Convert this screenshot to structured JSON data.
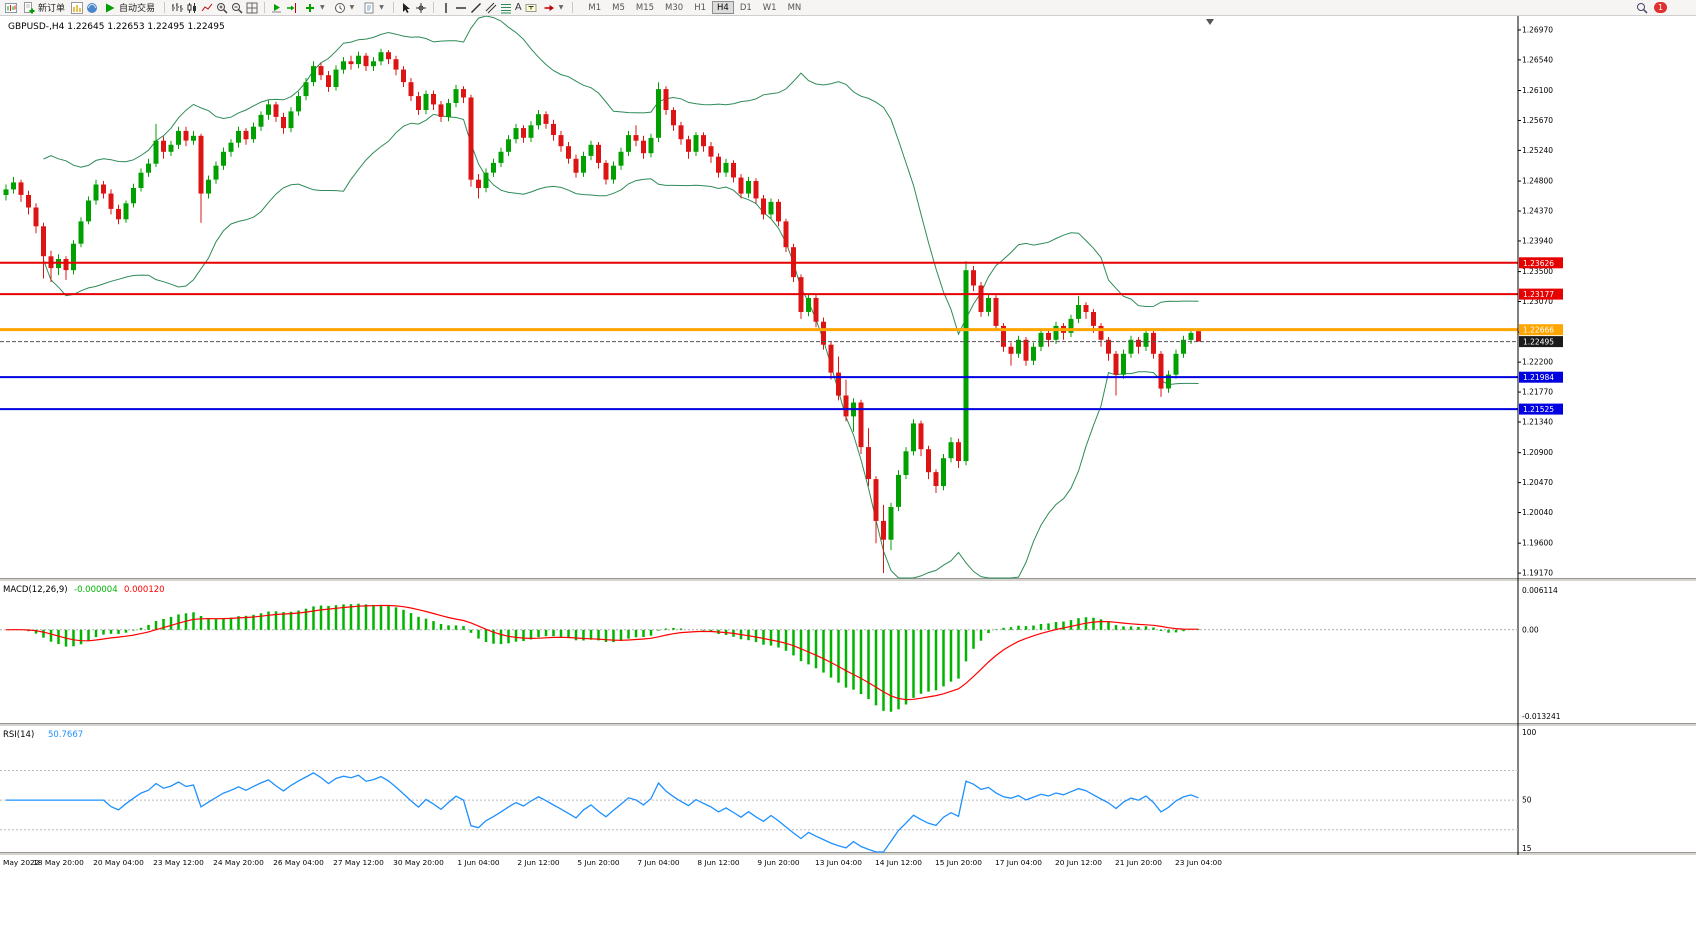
{
  "toolbar": {
    "new_order": "新订单",
    "autotrading": "自动交易",
    "timeframes": [
      "M1",
      "M5",
      "M15",
      "M30",
      "H1",
      "H4",
      "D1",
      "W1",
      "MN"
    ],
    "active_timeframe": "H4",
    "notification_count": "1"
  },
  "header": {
    "symbol_period": "GBPUSD-,H4",
    "open": "1.22645",
    "high": "1.22653",
    "low": "1.22495",
    "close": "1.22495"
  },
  "price_axis": {
    "top": 1.2717,
    "bottom": 1.191,
    "labels": [
      "1.26970",
      "1.26540",
      "1.26100",
      "1.25670",
      "1.25240",
      "1.24800",
      "1.24370",
      "1.23940",
      "1.23500",
      "1.23070",
      "1.22630",
      "1.22200",
      "1.21770",
      "1.21340",
      "1.20900",
      "1.20470",
      "1.20040",
      "1.19600",
      "1.19170"
    ]
  },
  "objects": {
    "hlines": [
      {
        "price": 1.23626,
        "label": "1.23626",
        "color": "#e60000",
        "width": 2
      },
      {
        "price": 1.23177,
        "label": "1.23177",
        "color": "#e60000",
        "width": 2
      },
      {
        "price": 1.22666,
        "label": "1.22666",
        "color": "#ffa500",
        "width": 3
      },
      {
        "price": 1.21984,
        "label": "1.21984",
        "color": "#0000e0",
        "width": 2
      },
      {
        "price": 1.21525,
        "label": "1.21525",
        "color": "#0000e0",
        "width": 2
      }
    ],
    "current_price": {
      "price": 1.22495,
      "label": "1.22495",
      "badge_color": "#1a1a1a"
    }
  },
  "time_axis": {
    "month": "May 2022",
    "labels": [
      "18 May 20:00",
      "20 May 04:00",
      "23 May 12:00",
      "24 May 20:00",
      "26 May 04:00",
      "27 May 12:00",
      "30 May 20:00",
      "1 Jun 04:00",
      "2 Jun 12:00",
      "5 Jun 20:00",
      "7 Jun 04:00",
      "8 Jun 12:00",
      "9 Jun 20:00",
      "13 Jun 04:00",
      "14 Jun 12:00",
      "15 Jun 20:00",
      "17 Jun 04:00",
      "20 Jun 12:00",
      "21 Jun 20:00",
      "23 Jun 04:00"
    ]
  },
  "chart_data": {
    "type": "candlestick",
    "symbol": "GBPUSD-",
    "period": "H4",
    "colors": {
      "bull": "#00a000",
      "bear": "#dc1414",
      "bands": "#2e8b57",
      "macd_hist": "#00b400",
      "macd_signal": "#ff0000",
      "rsi": "#1e90ff"
    },
    "candles": [
      [
        1.246,
        1.2475,
        1.2452,
        1.2468
      ],
      [
        1.2468,
        1.2486,
        1.2462,
        1.2478
      ],
      [
        1.2478,
        1.2482,
        1.245,
        1.246
      ],
      [
        1.246,
        1.2466,
        1.2432,
        1.2442
      ],
      [
        1.2442,
        1.2448,
        1.2405,
        1.2415
      ],
      [
        1.2415,
        1.242,
        1.234,
        1.2372
      ],
      [
        1.2372,
        1.238,
        1.2335,
        1.2355
      ],
      [
        1.2355,
        1.2375,
        1.2345,
        1.2368
      ],
      [
        1.2368,
        1.2372,
        1.2338,
        1.2352
      ],
      [
        1.2352,
        1.2395,
        1.2346,
        1.239
      ],
      [
        1.239,
        1.2428,
        1.2385,
        1.2422
      ],
      [
        1.2422,
        1.2458,
        1.2418,
        1.2452
      ],
      [
        1.2452,
        1.2482,
        1.2446,
        1.2475
      ],
      [
        1.2475,
        1.248,
        1.2455,
        1.2462
      ],
      [
        1.2462,
        1.2468,
        1.2432,
        1.244
      ],
      [
        1.244,
        1.2446,
        1.2418,
        1.2425
      ],
      [
        1.2425,
        1.2452,
        1.242,
        1.2448
      ],
      [
        1.2448,
        1.2476,
        1.2442,
        1.247
      ],
      [
        1.247,
        1.2498,
        1.2465,
        1.2492
      ],
      [
        1.2492,
        1.2512,
        1.2486,
        1.2505
      ],
      [
        1.2505,
        1.2562,
        1.25,
        1.2538
      ],
      [
        1.2538,
        1.2544,
        1.2512,
        1.2522
      ],
      [
        1.2522,
        1.2538,
        1.2516,
        1.2532
      ],
      [
        1.2532,
        1.2558,
        1.2526,
        1.2552
      ],
      [
        1.2552,
        1.2558,
        1.253,
        1.2538
      ],
      [
        1.2538,
        1.2552,
        1.2532,
        1.2545
      ],
      [
        1.2545,
        1.2548,
        1.242,
        1.2462
      ],
      [
        1.2462,
        1.2488,
        1.2455,
        1.2482
      ],
      [
        1.2482,
        1.2508,
        1.2476,
        1.2502
      ],
      [
        1.2502,
        1.2528,
        1.2496,
        1.2522
      ],
      [
        1.2522,
        1.254,
        1.2515,
        1.2535
      ],
      [
        1.2535,
        1.2558,
        1.2528,
        1.2552
      ],
      [
        1.2552,
        1.2556,
        1.2532,
        1.254
      ],
      [
        1.254,
        1.2564,
        1.2535,
        1.2558
      ],
      [
        1.2558,
        1.258,
        1.2552,
        1.2575
      ],
      [
        1.2575,
        1.2596,
        1.2568,
        1.259
      ],
      [
        1.259,
        1.2594,
        1.2565,
        1.2572
      ],
      [
        1.2572,
        1.2578,
        1.2548,
        1.2556
      ],
      [
        1.2556,
        1.2586,
        1.255,
        1.258
      ],
      [
        1.258,
        1.2608,
        1.2574,
        1.2602
      ],
      [
        1.2602,
        1.2628,
        1.2596,
        1.2622
      ],
      [
        1.2622,
        1.2652,
        1.2616,
        1.2645
      ],
      [
        1.2645,
        1.265,
        1.2625,
        1.2632
      ],
      [
        1.2632,
        1.2638,
        1.2608,
        1.2615
      ],
      [
        1.2615,
        1.2646,
        1.261,
        1.264
      ],
      [
        1.264,
        1.2658,
        1.2634,
        1.2652
      ],
      [
        1.2652,
        1.266,
        1.264,
        1.2648
      ],
      [
        1.2648,
        1.2666,
        1.2642,
        1.266
      ],
      [
        1.266,
        1.2664,
        1.2638,
        1.2645
      ],
      [
        1.2645,
        1.2658,
        1.2638,
        1.2652
      ],
      [
        1.2652,
        1.267,
        1.2646,
        1.2665
      ],
      [
        1.2665,
        1.2668,
        1.2648,
        1.2655
      ],
      [
        1.2655,
        1.266,
        1.2632,
        1.264
      ],
      [
        1.264,
        1.2645,
        1.2615,
        1.2622
      ],
      [
        1.2622,
        1.2628,
        1.2595,
        1.2602
      ],
      [
        1.2602,
        1.2608,
        1.2575,
        1.2582
      ],
      [
        1.2582,
        1.261,
        1.2576,
        1.2605
      ],
      [
        1.2605,
        1.261,
        1.2582,
        1.259
      ],
      [
        1.259,
        1.2595,
        1.2565,
        1.2572
      ],
      [
        1.2572,
        1.2598,
        1.2566,
        1.2592
      ],
      [
        1.2592,
        1.2618,
        1.2586,
        1.2612
      ],
      [
        1.2612,
        1.2616,
        1.2592,
        1.26
      ],
      [
        1.26,
        1.2604,
        1.2472,
        1.2482
      ],
      [
        1.2482,
        1.249,
        1.2455,
        1.247
      ],
      [
        1.247,
        1.2498,
        1.2464,
        1.2492
      ],
      [
        1.2492,
        1.2512,
        1.2486,
        1.2506
      ],
      [
        1.2506,
        1.2528,
        1.25,
        1.2522
      ],
      [
        1.2522,
        1.2546,
        1.2516,
        1.254
      ],
      [
        1.254,
        1.2562,
        1.2534,
        1.2556
      ],
      [
        1.2556,
        1.256,
        1.2535,
        1.2542
      ],
      [
        1.2542,
        1.2566,
        1.2536,
        1.256
      ],
      [
        1.256,
        1.2582,
        1.2554,
        1.2576
      ],
      [
        1.2576,
        1.258,
        1.2555,
        1.2562
      ],
      [
        1.2562,
        1.2568,
        1.2538,
        1.2546
      ],
      [
        1.2546,
        1.2552,
        1.2522,
        1.253
      ],
      [
        1.253,
        1.2536,
        1.2505,
        1.2512
      ],
      [
        1.2512,
        1.2518,
        1.2485,
        1.2492
      ],
      [
        1.2492,
        1.2522,
        1.2486,
        1.2516
      ],
      [
        1.2516,
        1.2538,
        1.251,
        1.2532
      ],
      [
        1.2532,
        1.2536,
        1.2498,
        1.2506
      ],
      [
        1.2506,
        1.251,
        1.2475,
        1.2482
      ],
      [
        1.2482,
        1.2508,
        1.2476,
        1.2502
      ],
      [
        1.2502,
        1.2528,
        1.2496,
        1.2522
      ],
      [
        1.2522,
        1.2552,
        1.2516,
        1.2546
      ],
      [
        1.2546,
        1.256,
        1.253,
        1.2538
      ],
      [
        1.2538,
        1.2545,
        1.2512,
        1.252
      ],
      [
        1.252,
        1.2548,
        1.2514,
        1.2542
      ],
      [
        1.2542,
        1.2622,
        1.2536,
        1.2612
      ],
      [
        1.2612,
        1.2616,
        1.2575,
        1.2582
      ],
      [
        1.2582,
        1.2586,
        1.2552,
        1.256
      ],
      [
        1.256,
        1.2565,
        1.2532,
        1.254
      ],
      [
        1.254,
        1.2545,
        1.2512,
        1.2522
      ],
      [
        1.2522,
        1.255,
        1.2516,
        1.2546
      ],
      [
        1.2546,
        1.255,
        1.2522,
        1.253
      ],
      [
        1.253,
        1.2536,
        1.2506,
        1.2515
      ],
      [
        1.2515,
        1.252,
        1.2485,
        1.2492
      ],
      [
        1.2492,
        1.2512,
        1.2486,
        1.2506
      ],
      [
        1.2506,
        1.251,
        1.2478,
        1.2485
      ],
      [
        1.2485,
        1.249,
        1.2455,
        1.2462
      ],
      [
        1.2462,
        1.2486,
        1.2456,
        1.248
      ],
      [
        1.248,
        1.2484,
        1.2448,
        1.2455
      ],
      [
        1.2455,
        1.246,
        1.2425,
        1.2432
      ],
      [
        1.2432,
        1.2455,
        1.2426,
        1.245
      ],
      [
        1.245,
        1.2454,
        1.2415,
        1.2422
      ],
      [
        1.2422,
        1.2426,
        1.2378,
        1.2385
      ],
      [
        1.2385,
        1.239,
        1.2335,
        1.2342
      ],
      [
        1.2342,
        1.2346,
        1.2282,
        1.2292
      ],
      [
        1.2292,
        1.2318,
        1.2286,
        1.2312
      ],
      [
        1.2312,
        1.2316,
        1.227,
        1.2278
      ],
      [
        1.2278,
        1.2284,
        1.2238,
        1.2245
      ],
      [
        1.2245,
        1.225,
        1.2195,
        1.2205
      ],
      [
        1.2205,
        1.2228,
        1.2165,
        1.2172
      ],
      [
        1.2172,
        1.2195,
        1.2135,
        1.2142
      ],
      [
        1.2142,
        1.2168,
        1.212,
        1.2162
      ],
      [
        1.2162,
        1.2166,
        1.2088,
        1.2098
      ],
      [
        1.2098,
        1.2125,
        1.2042,
        1.2052
      ],
      [
        1.2052,
        1.2056,
        1.196,
        1.1992
      ],
      [
        1.1992,
        1.2015,
        1.1917,
        1.1965
      ],
      [
        1.1965,
        1.2018,
        1.195,
        1.2012
      ],
      [
        1.2012,
        1.2065,
        1.2006,
        1.2058
      ],
      [
        1.2058,
        1.2098,
        1.2052,
        1.2092
      ],
      [
        1.2092,
        1.2138,
        1.2086,
        1.2132
      ],
      [
        1.2132,
        1.2136,
        1.2085,
        1.2095
      ],
      [
        1.2095,
        1.21,
        1.2052,
        1.2062
      ],
      [
        1.2062,
        1.2066,
        1.2032,
        1.2042
      ],
      [
        1.2042,
        1.2088,
        1.2036,
        1.2082
      ],
      [
        1.2082,
        1.2112,
        1.2076,
        1.2105
      ],
      [
        1.2105,
        1.211,
        1.2068,
        1.2078
      ],
      [
        1.2078,
        1.2365,
        1.2072,
        1.2352
      ],
      [
        1.2352,
        1.2358,
        1.2322,
        1.233
      ],
      [
        1.233,
        1.2335,
        1.2285,
        1.2292
      ],
      [
        1.2292,
        1.2318,
        1.2286,
        1.2312
      ],
      [
        1.2312,
        1.2316,
        1.2265,
        1.2272
      ],
      [
        1.2272,
        1.2276,
        1.2235,
        1.2242
      ],
      [
        1.2242,
        1.2248,
        1.2215,
        1.2232
      ],
      [
        1.2232,
        1.2258,
        1.2226,
        1.2252
      ],
      [
        1.2252,
        1.2256,
        1.2215,
        1.2222
      ],
      [
        1.2222,
        1.2248,
        1.2216,
        1.2242
      ],
      [
        1.2242,
        1.2268,
        1.2236,
        1.2262
      ],
      [
        1.2262,
        1.2266,
        1.2242,
        1.2252
      ],
      [
        1.2252,
        1.2278,
        1.2246,
        1.2272
      ],
      [
        1.2272,
        1.2276,
        1.2252,
        1.2262
      ],
      [
        1.2262,
        1.2288,
        1.2256,
        1.2282
      ],
      [
        1.2282,
        1.2315,
        1.2276,
        1.2302
      ],
      [
        1.2302,
        1.2306,
        1.2282,
        1.2292
      ],
      [
        1.2292,
        1.2296,
        1.2262,
        1.2272
      ],
      [
        1.2272,
        1.2276,
        1.2242,
        1.2252
      ],
      [
        1.2252,
        1.2256,
        1.2222,
        1.2232
      ],
      [
        1.2232,
        1.2236,
        1.2172,
        1.2202
      ],
      [
        1.2202,
        1.2238,
        1.2196,
        1.2232
      ],
      [
        1.2232,
        1.2258,
        1.2226,
        1.2252
      ],
      [
        1.2252,
        1.2256,
        1.2232,
        1.2242
      ],
      [
        1.2242,
        1.2268,
        1.2236,
        1.2262
      ],
      [
        1.2262,
        1.2266,
        1.2225,
        1.2232
      ],
      [
        1.2232,
        1.2236,
        1.217,
        1.2182
      ],
      [
        1.2182,
        1.2208,
        1.2176,
        1.2202
      ],
      [
        1.2202,
        1.2238,
        1.2196,
        1.2232
      ],
      [
        1.2232,
        1.2258,
        1.2226,
        1.2252
      ],
      [
        1.2252,
        1.2268,
        1.2246,
        1.2262
      ],
      [
        1.22645,
        1.22653,
        1.22495,
        1.22495
      ]
    ],
    "indicators": {
      "bollinger": {
        "period": 20,
        "deviation": 2
      },
      "macd": {
        "label": "MACD(12,26,9)",
        "fast": 12,
        "slow": 26,
        "signal_period": 9,
        "value_main": "-0.000004",
        "value_signal": "0.000120",
        "scale_max": 0.006114,
        "scale_min": -0.013241,
        "axis_labels": [
          "0.006114",
          "0.00",
          "-0.013241"
        ]
      },
      "rsi": {
        "label": "RSI(14)",
        "period": 14,
        "value": "50.7667",
        "scale_max": 100,
        "scale_min": 15,
        "levels": [
          70,
          50,
          30
        ],
        "axis_labels": [
          "100",
          "50",
          "15"
        ]
      }
    }
  }
}
